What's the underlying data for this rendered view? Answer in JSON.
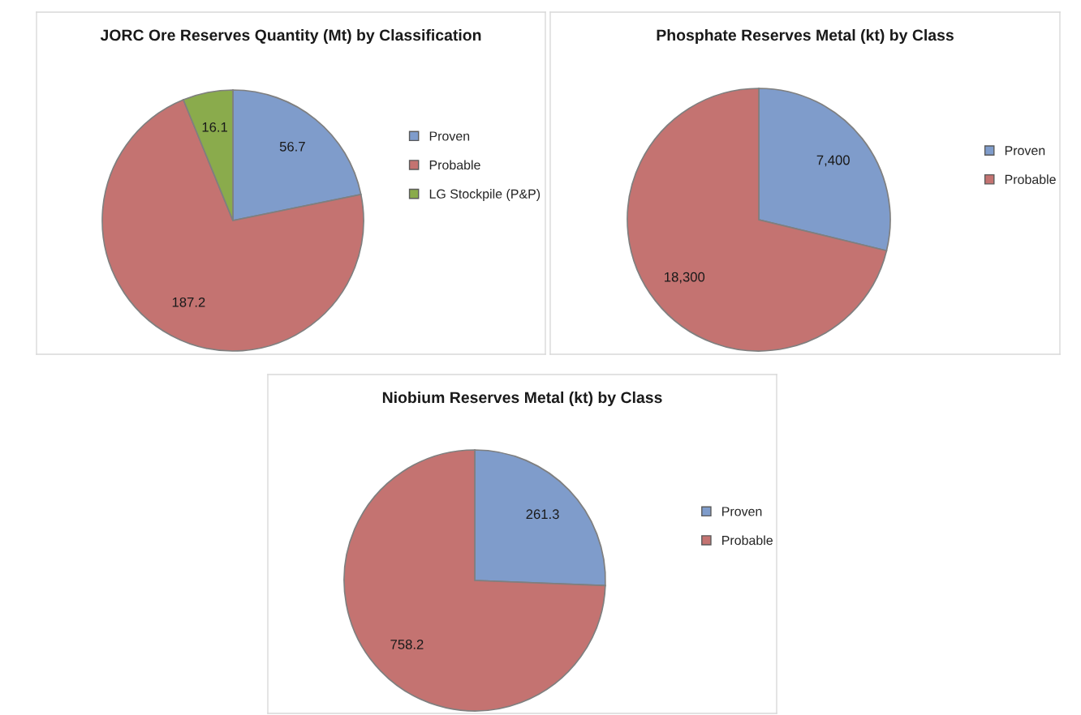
{
  "chart_data": [
    {
      "type": "pie",
      "title": "JORC Ore Reserves Quantity (Mt) by Classification",
      "categories": [
        "Proven",
        "Probable",
        "LG Stockpile (P&P)"
      ],
      "values": [
        56.7,
        187.2,
        16.1
      ],
      "value_labels": [
        "56.7",
        "187.2",
        "16.1"
      ],
      "colors": [
        "#7f9ccb",
        "#c47371",
        "#8aab4c"
      ],
      "legend": "right"
    },
    {
      "type": "pie",
      "title": "Phosphate Reserves Metal (kt) by Class",
      "categories": [
        "Proven",
        "Probable"
      ],
      "values": [
        7400,
        18300
      ],
      "value_labels": [
        "7,400",
        "18,300"
      ],
      "colors": [
        "#7f9ccb",
        "#c47371"
      ],
      "legend": "right"
    },
    {
      "type": "pie",
      "title": "Niobium Reserves Metal (kt) by Class",
      "categories": [
        "Proven",
        "Probable"
      ],
      "values": [
        261.3,
        758.2
      ],
      "value_labels": [
        "261.3",
        "758.2"
      ],
      "colors": [
        "#7f9ccb",
        "#c47371"
      ],
      "legend": "right"
    }
  ]
}
